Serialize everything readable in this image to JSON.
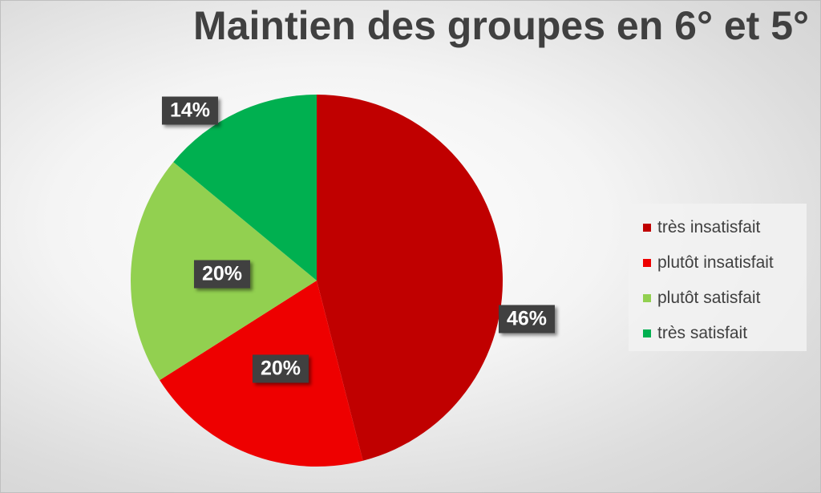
{
  "chart_data": {
    "type": "pie",
    "title": "Maintien des groupes en 6° et 5°",
    "categories": [
      "très insatisfait",
      "plutôt insatisfait",
      "plutôt satisfait",
      "très satisfait"
    ],
    "values": [
      46,
      20,
      20,
      14
    ],
    "data_labels": [
      "46%",
      "20%",
      "20%",
      "14%"
    ],
    "colors": [
      "#c00000",
      "#ee0000",
      "#92d050",
      "#00b050"
    ],
    "legend_position": "right"
  }
}
